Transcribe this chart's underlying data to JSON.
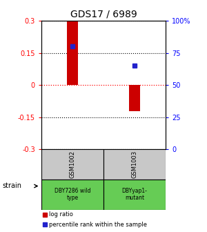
{
  "title": "GDS17 / 6989",
  "samples": [
    "GSM1002",
    "GSM1003"
  ],
  "log_ratios": [
    0.3,
    -0.12
  ],
  "percentile_ranks": [
    80,
    65
  ],
  "strain_labels": [
    "DBY7286 wild\ntype",
    "DBYyap1-\nmutant"
  ],
  "ylim_left": [
    -0.3,
    0.3
  ],
  "ylim_right": [
    0,
    100
  ],
  "left_ticks": [
    -0.3,
    -0.15,
    0,
    0.15,
    0.3
  ],
  "right_ticks": [
    0,
    25,
    50,
    75,
    100
  ],
  "right_tick_labels": [
    "0",
    "25",
    "50",
    "75",
    "100%"
  ],
  "bar_color": "#cc0000",
  "marker_color": "#2222cc",
  "gray_bg": "#c8c8c8",
  "green_bg": "#66cc55",
  "strain_label": "strain",
  "legend_bar": "log ratio",
  "legend_marker": "percentile rank within the sample",
  "bar_width": 0.18
}
